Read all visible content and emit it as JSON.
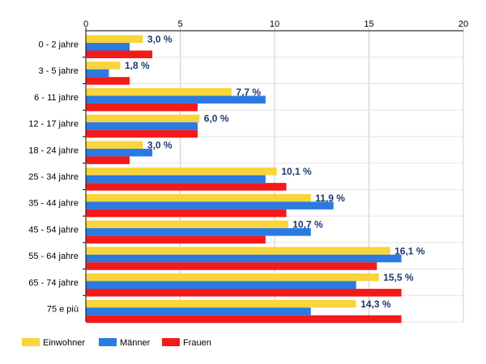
{
  "chart_data": {
    "type": "bar",
    "orientation": "horizontal",
    "categories": [
      "0 - 2 jahre",
      "3 - 5 jahre",
      "6 - 11 jahre",
      "12 - 17 jahre",
      "18 - 24 jahre",
      "25 - 34 jahre",
      "35 - 44 jahre",
      "45 - 54 jahre",
      "55 - 64 jahre",
      "65 - 74 jahre",
      "75 e più"
    ],
    "series": [
      {
        "name": "Einwohner",
        "color": "#f9d43a",
        "values": [
          3.0,
          1.8,
          7.7,
          6.0,
          3.0,
          10.1,
          11.9,
          10.7,
          16.1,
          15.5,
          14.3
        ]
      },
      {
        "name": "Männer",
        "color": "#2a7ae2",
        "values": [
          2.3,
          1.2,
          9.5,
          5.9,
          3.5,
          9.5,
          13.1,
          11.9,
          16.7,
          14.3,
          11.9
        ]
      },
      {
        "name": "Frauen",
        "color": "#f51a1a",
        "values": [
          3.5,
          2.3,
          5.9,
          5.9,
          2.3,
          10.6,
          10.6,
          9.5,
          15.4,
          16.7,
          16.7
        ]
      }
    ],
    "data_labels": [
      "3,0 %",
      "1,8 %",
      "7,7 %",
      "6,0 %",
      "3,0 %",
      "10,1 %",
      "11,9 %",
      "10,7 %",
      "16,1 %",
      "15,5 %",
      "14,3 %"
    ],
    "x_ticks": [
      "0",
      "5",
      "10",
      "15",
      "20"
    ],
    "xlim": [
      0,
      20
    ],
    "axis_position": "top",
    "grid": true,
    "legend_position": "bottom-left",
    "title": "",
    "xlabel": "",
    "ylabel": ""
  }
}
